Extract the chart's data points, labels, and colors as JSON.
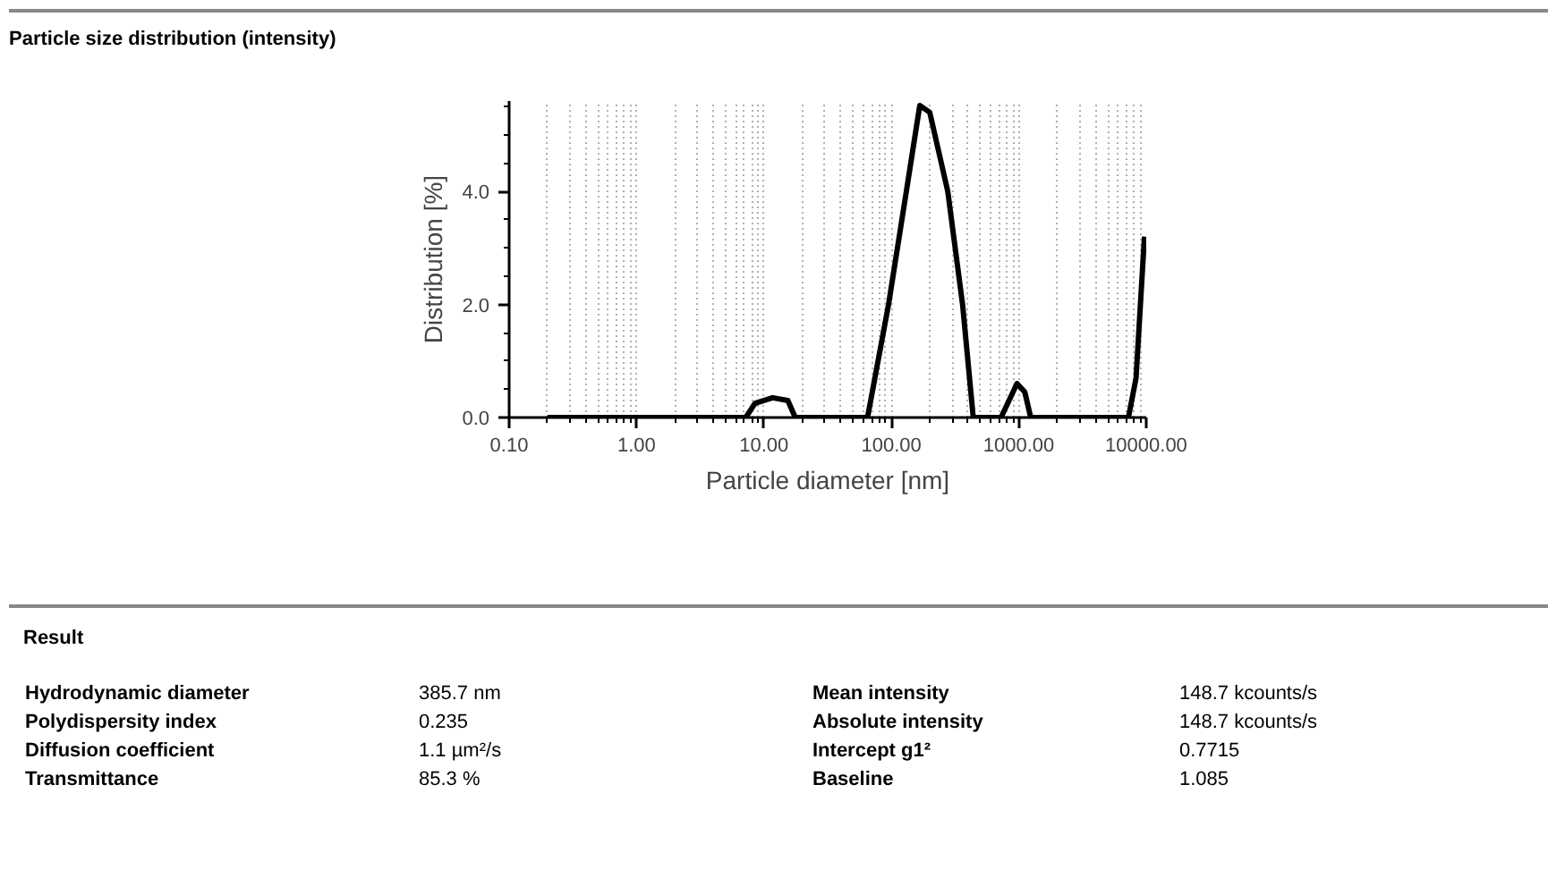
{
  "chart_data": {
    "type": "line",
    "title": "Particle size distribution (intensity)",
    "xlabel": "Particle diameter [nm]",
    "ylabel": "Distribution [%]",
    "x": [
      0.2,
      7.2,
      8.5,
      11.7,
      15.4,
      17.6,
      65,
      95,
      131,
      167,
      200,
      277,
      362,
      439,
      725,
      968,
      1114,
      1240,
      7250,
      8320,
      9680
    ],
    "series": [
      {
        "color": "#000000",
        "values": [
          0,
          0,
          0.25,
          0.35,
          0.3,
          0,
          0,
          2.0,
          4.0,
          5.52,
          5.4,
          4.0,
          2.0,
          0,
          0,
          0.6,
          0.45,
          0,
          0,
          0.7,
          3.2
        ]
      }
    ],
    "log": "x",
    "xlim": [
      0.1,
      10000
    ],
    "ylim": [
      0,
      5.6
    ],
    "xticks": [
      {
        "value": 0.1,
        "label": "0.10"
      },
      {
        "value": 1,
        "label": "1.00"
      },
      {
        "value": 10,
        "label": "10.00"
      },
      {
        "value": 100,
        "label": "100.00"
      },
      {
        "value": 1000,
        "label": "1000.00"
      },
      {
        "value": 10000,
        "label": "10000.00"
      }
    ],
    "yticks": [
      {
        "value": 0,
        "label": "0.0"
      },
      {
        "value": 2,
        "label": "2.0"
      },
      {
        "value": 4,
        "label": "4.0"
      }
    ],
    "grid": "x",
    "marker": "none",
    "line_style": "solid",
    "annotations": [
      "Result",
      "Hydrodynamic diameter",
      "385.7 nm",
      "Polydispersity index",
      "0.235",
      "Diffusion coefficient",
      "1.1 µm²/s",
      "Transmittance",
      "85.3 %",
      "Mean intensity",
      "148.7 kcounts/s",
      "Absolute intensity",
      "148.7 kcounts/s",
      "Intercept g1²",
      "0.7715",
      "Baseline",
      "1.085"
    ]
  }
}
